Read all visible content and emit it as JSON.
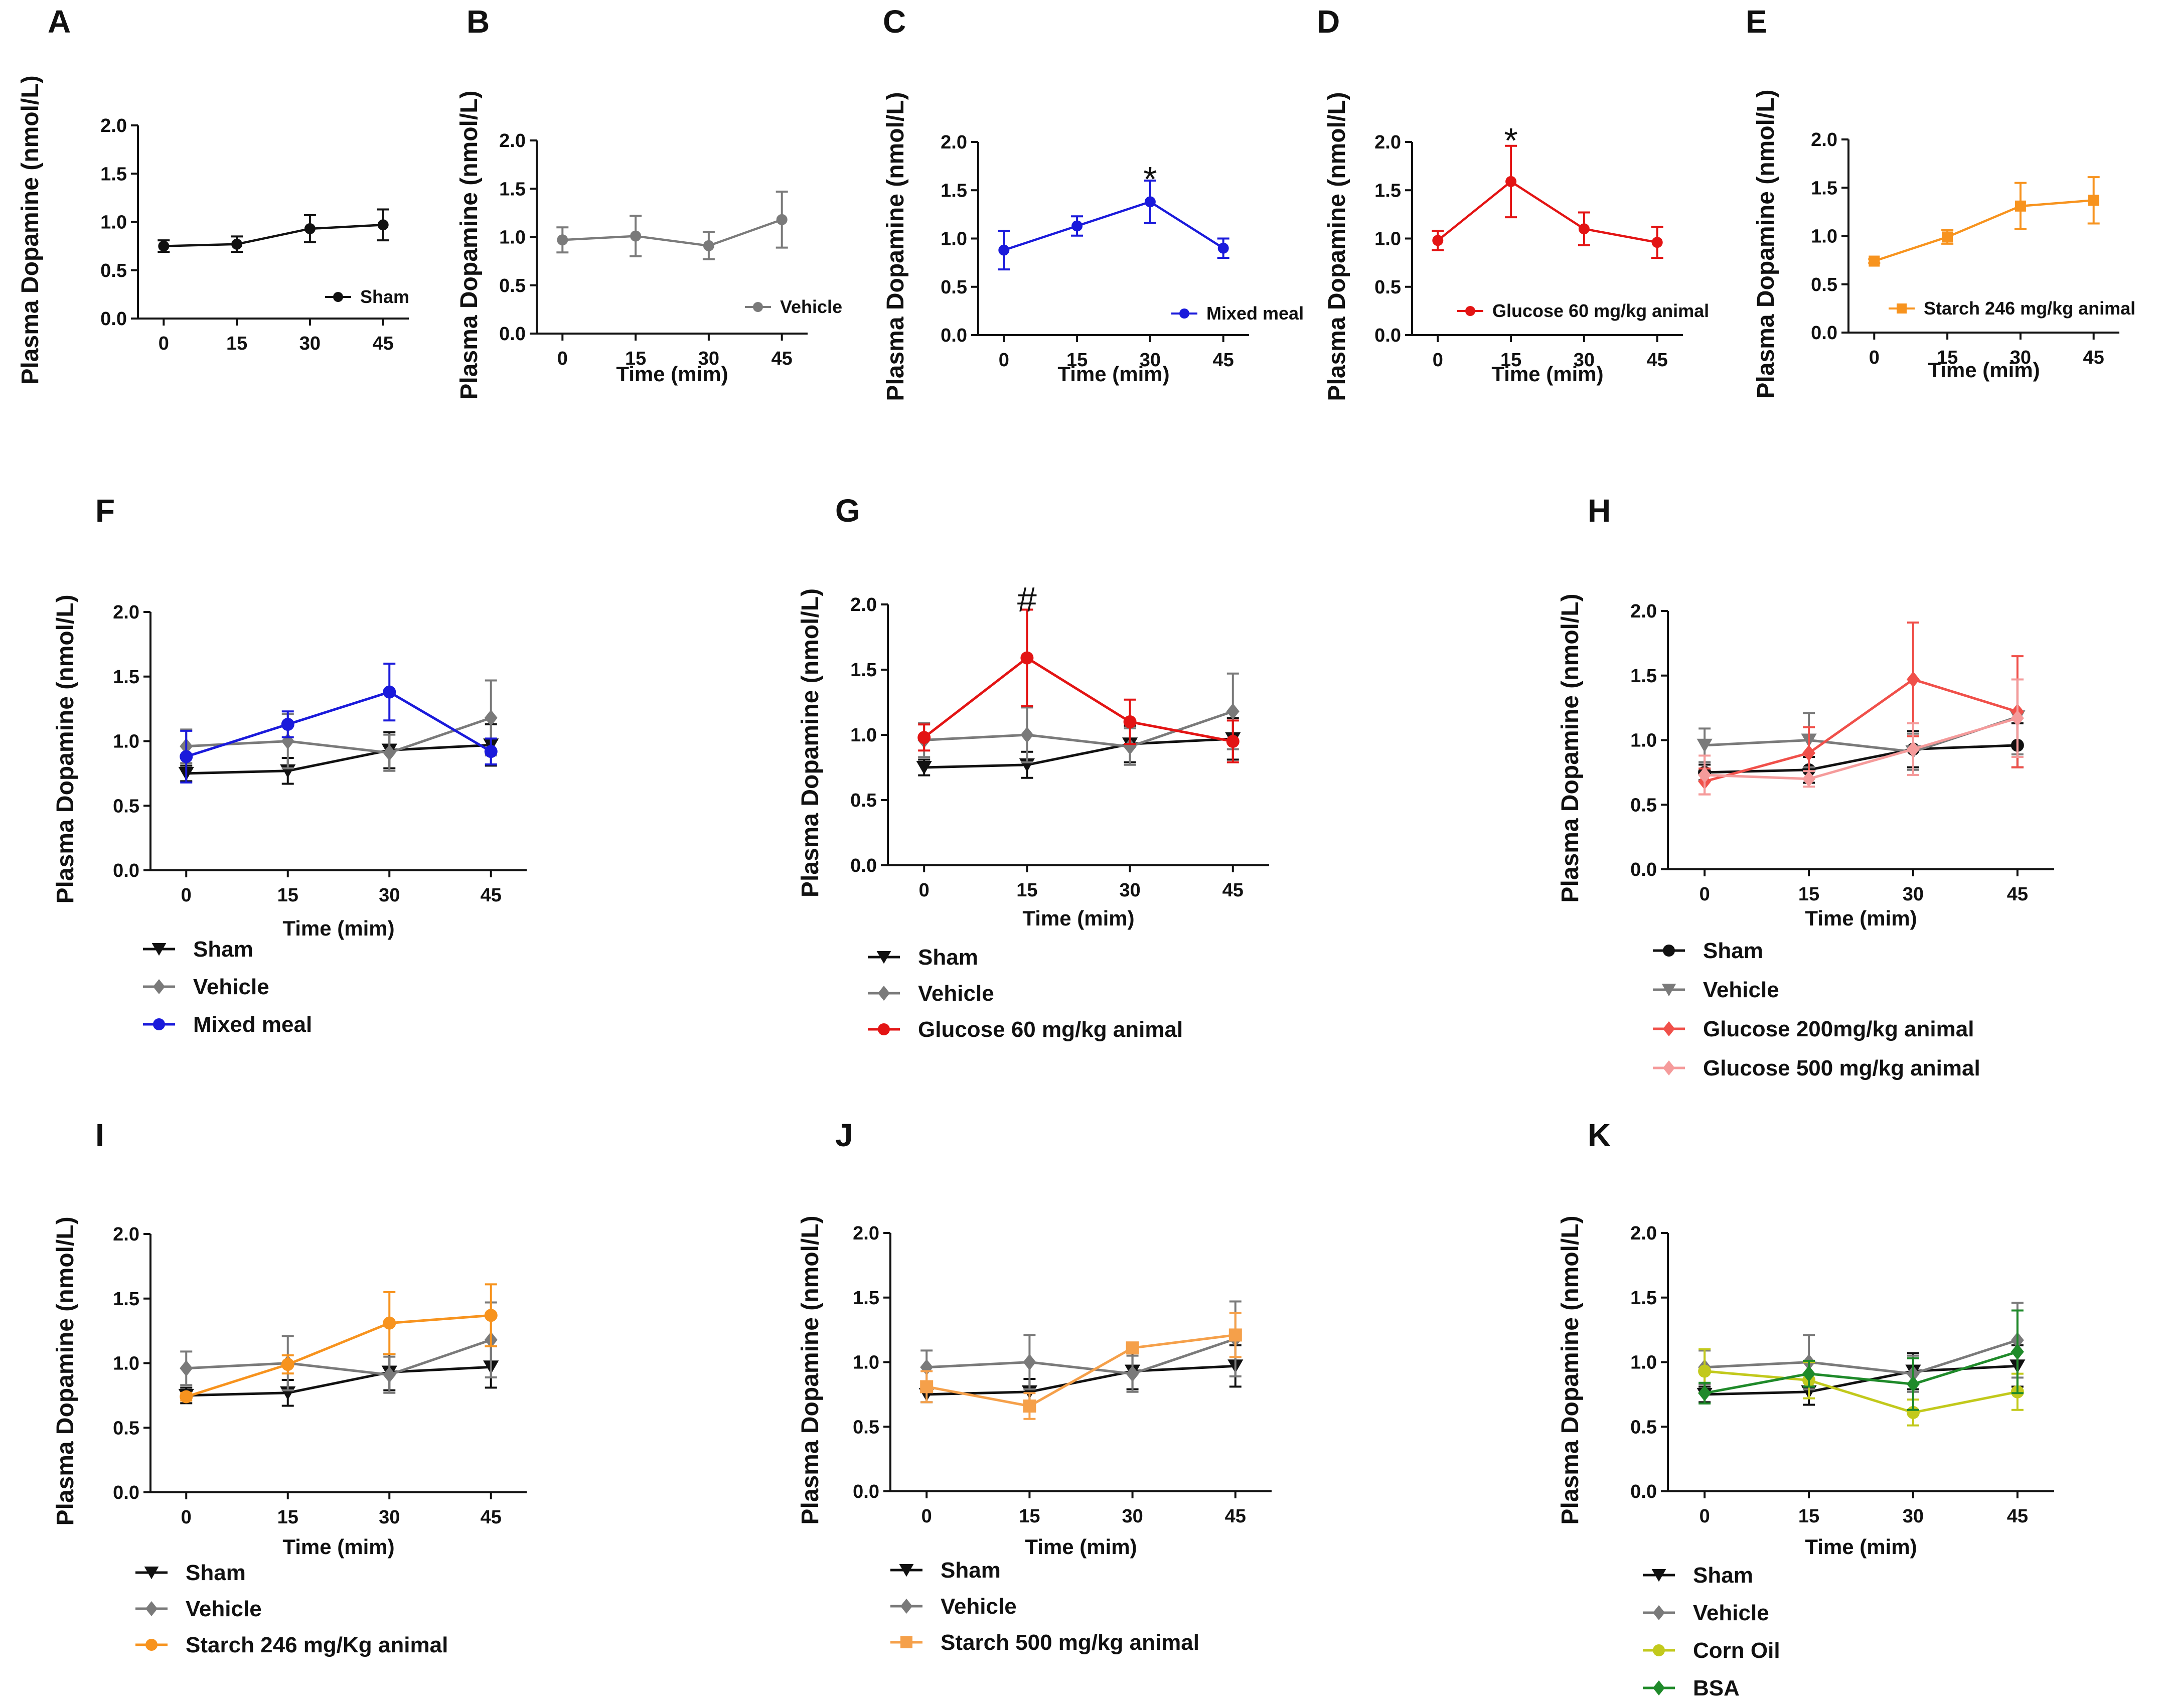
{
  "figure": {
    "colors": {
      "sham": "#111111",
      "vehicle": "#7a7a7a",
      "mixed_meal": "#1a1adb",
      "glucose60": "#e31414",
      "glucose200": "#f0504a",
      "glucose500": "#f59b9b",
      "starch246": "#f7931e",
      "starch500": "#f5a04a",
      "corn_oil": "#c2c91c",
      "bsa": "#1f8a2a"
    }
  },
  "chart_data": [
    {
      "id": "A",
      "panel_label": "A",
      "type": "line",
      "ylabel": "Plasma Dopamine (nmol/L)",
      "xlabel": "",
      "x": [
        0,
        15,
        30,
        45
      ],
      "x_tick_labels": [
        "0",
        "15",
        "30",
        "45"
      ],
      "ylim": [
        0,
        2.0
      ],
      "y_ticks": [
        0,
        0.5,
        1.0,
        1.5,
        2.0
      ],
      "y_tick_labels": [
        "0.0",
        "0.5",
        "1.0",
        "1.5",
        "2.0"
      ],
      "legend_position": "bottom-right-inside",
      "series": [
        {
          "name": "Sham",
          "color_key": "sham",
          "marker": "circle",
          "values": [
            0.75,
            0.77,
            0.93,
            0.97
          ],
          "errors": [
            0.06,
            0.08,
            0.14,
            0.16
          ]
        }
      ],
      "annotations": []
    },
    {
      "id": "B",
      "panel_label": "B",
      "type": "line",
      "ylabel": "Plasma Dopamine (nmol/L)",
      "xlabel": "Time (mim)",
      "x": [
        0,
        15,
        30,
        45
      ],
      "x_tick_labels": [
        "0",
        "15",
        "30",
        "45"
      ],
      "ylim": [
        0,
        2.0
      ],
      "y_ticks": [
        0,
        0.5,
        1.0,
        1.5,
        2.0
      ],
      "y_tick_labels": [
        "0.0",
        "0.5",
        "1.0",
        "1.5",
        "2.0"
      ],
      "legend_position": "bottom-right-inside",
      "series": [
        {
          "name": "Vehicle",
          "color_key": "vehicle",
          "marker": "circle",
          "values": [
            0.97,
            1.01,
            0.91,
            1.18
          ],
          "errors": [
            0.13,
            0.21,
            0.14,
            0.29
          ]
        }
      ],
      "annotations": []
    },
    {
      "id": "C",
      "panel_label": "C",
      "type": "line",
      "ylabel": "Plasma Dopamine (nmol/L)",
      "xlabel": "Time (mim)",
      "x": [
        0,
        15,
        30,
        45
      ],
      "x_tick_labels": [
        "0",
        "15",
        "30",
        "45"
      ],
      "ylim": [
        0,
        2.0
      ],
      "y_ticks": [
        0,
        0.5,
        1.0,
        1.5,
        2.0
      ],
      "y_tick_labels": [
        "0.0",
        "0.5",
        "1.0",
        "1.5",
        "2.0"
      ],
      "legend_position": "bottom-right-inside",
      "series": [
        {
          "name": "Mixed meal",
          "color_key": "mixed_meal",
          "marker": "circle",
          "values": [
            0.88,
            1.13,
            1.38,
            0.9
          ],
          "errors": [
            0.2,
            0.1,
            0.22,
            0.1
          ]
        }
      ],
      "annotations": [
        {
          "text": "*",
          "x": 30,
          "y": 1.7
        }
      ]
    },
    {
      "id": "D",
      "panel_label": "D",
      "type": "line",
      "ylabel": "Plasma Dopamine (nmol/L)",
      "xlabel": "Time (mim)",
      "x": [
        0,
        15,
        30,
        45
      ],
      "x_tick_labels": [
        "0",
        "15",
        "30",
        "45"
      ],
      "ylim": [
        0,
        2.0
      ],
      "y_ticks": [
        0,
        0.5,
        1.0,
        1.5,
        2.0
      ],
      "y_tick_labels": [
        "0.0",
        "0.5",
        "1.0",
        "1.5",
        "2.0"
      ],
      "legend_position": "bottom-right-inside",
      "series": [
        {
          "name": "Glucose 60 mg/kg animal",
          "color_key": "glucose60",
          "marker": "circle",
          "values": [
            0.98,
            1.59,
            1.1,
            0.96
          ],
          "errors": [
            0.1,
            0.37,
            0.17,
            0.16
          ]
        }
      ],
      "annotations": [
        {
          "text": "*",
          "x": 15,
          "y": 2.1
        }
      ]
    },
    {
      "id": "E",
      "panel_label": "E",
      "type": "line",
      "ylabel": "Plasma Dopamine (nmol/L)",
      "xlabel": "Time (mim)",
      "x": [
        0,
        15,
        30,
        45
      ],
      "x_tick_labels": [
        "0",
        "15",
        "30",
        "45"
      ],
      "ylim": [
        0,
        2.0
      ],
      "y_ticks": [
        0,
        0.5,
        1.0,
        1.5,
        2.0
      ],
      "y_tick_labels": [
        "0.0",
        "0.5",
        "1.0",
        "1.5",
        "2.0"
      ],
      "legend_position": "bottom-right-inside",
      "series": [
        {
          "name": "Starch  246 mg/kg animal",
          "color_key": "starch246",
          "marker": "square",
          "values": [
            0.74,
            0.99,
            1.31,
            1.37
          ],
          "errors": [
            0.02,
            0.07,
            0.24,
            0.24
          ]
        }
      ],
      "annotations": []
    },
    {
      "id": "F",
      "panel_label": "F",
      "type": "line",
      "ylabel": "Plasma Dopamine (nmol/L)",
      "xlabel": "Time (mim)",
      "x": [
        0,
        15,
        30,
        45
      ],
      "x_tick_labels": [
        "0",
        "15",
        "30",
        "45"
      ],
      "ylim": [
        0,
        2.0
      ],
      "y_ticks": [
        0,
        0.5,
        1.0,
        1.5,
        2.0
      ],
      "y_tick_labels": [
        "0.0",
        "0.5",
        "1.0",
        "1.5",
        "2.0"
      ],
      "legend_position": "below",
      "series": [
        {
          "name": "Sham",
          "color_key": "sham",
          "marker": "triangle-down",
          "values": [
            0.75,
            0.77,
            0.93,
            0.97
          ],
          "errors": [
            0.06,
            0.1,
            0.14,
            0.16
          ]
        },
        {
          "name": "Vehicle",
          "color_key": "vehicle",
          "marker": "diamond",
          "values": [
            0.96,
            1.0,
            0.91,
            1.18
          ],
          "errors": [
            0.13,
            0.21,
            0.14,
            0.29
          ]
        },
        {
          "name": "Mixed meal",
          "color_key": "mixed_meal",
          "marker": "circle",
          "values": [
            0.88,
            1.13,
            1.38,
            0.92
          ],
          "errors": [
            0.2,
            0.1,
            0.22,
            0.1
          ]
        }
      ],
      "annotations": []
    },
    {
      "id": "G",
      "panel_label": "G",
      "type": "line",
      "ylabel": "Plasma Dopamine (nmol/L)",
      "xlabel": "Time (mim)",
      "x": [
        0,
        15,
        30,
        45
      ],
      "x_tick_labels": [
        "0",
        "15",
        "30",
        "45"
      ],
      "ylim": [
        0,
        2.0
      ],
      "y_ticks": [
        0,
        0.5,
        1.0,
        1.5,
        2.0
      ],
      "y_tick_labels": [
        "0.0",
        "0.5",
        "1.0",
        "1.5",
        "2.0"
      ],
      "legend_position": "below",
      "series": [
        {
          "name": "Sham",
          "color_key": "sham",
          "marker": "triangle-down",
          "values": [
            0.75,
            0.77,
            0.93,
            0.97
          ],
          "errors": [
            0.06,
            0.1,
            0.14,
            0.16
          ]
        },
        {
          "name": "Vehicle",
          "color_key": "vehicle",
          "marker": "diamond",
          "values": [
            0.96,
            1.0,
            0.91,
            1.18
          ],
          "errors": [
            0.13,
            0.21,
            0.14,
            0.29
          ]
        },
        {
          "name": "Glucose 60 mg/kg animal",
          "color_key": "glucose60",
          "marker": "circle",
          "values": [
            0.98,
            1.59,
            1.1,
            0.95
          ],
          "errors": [
            0.1,
            0.37,
            0.17,
            0.16
          ]
        }
      ],
      "annotations": [
        {
          "text": "#",
          "x": 15,
          "y": 2.1
        }
      ]
    },
    {
      "id": "H",
      "panel_label": "H",
      "type": "line",
      "ylabel": "Plasma Dopamine (nmol/L)",
      "xlabel": "Time (mim)",
      "x": [
        0,
        15,
        30,
        45
      ],
      "x_tick_labels": [
        "0",
        "15",
        "30",
        "45"
      ],
      "ylim": [
        0,
        2.0
      ],
      "y_ticks": [
        0,
        0.5,
        1.0,
        1.5,
        2.0
      ],
      "y_tick_labels": [
        "0.0",
        "0.5",
        "1.0",
        "1.5",
        "2.0"
      ],
      "legend_position": "below",
      "series": [
        {
          "name": "Sham",
          "color_key": "sham",
          "marker": "circle",
          "values": [
            0.75,
            0.77,
            0.93,
            0.96
          ],
          "errors": [
            0.06,
            0.1,
            0.14,
            0.17
          ]
        },
        {
          "name": "Vehicle",
          "color_key": "vehicle",
          "marker": "triangle-down",
          "values": [
            0.96,
            1.0,
            0.91,
            1.18
          ],
          "errors": [
            0.13,
            0.21,
            0.14,
            0.29
          ]
        },
        {
          "name": "Glucose 200mg/kg animal",
          "color_key": "glucose200",
          "marker": "diamond",
          "values": [
            0.68,
            0.9,
            1.47,
            1.22
          ],
          "errors": [
            0.1,
            0.2,
            0.44,
            0.43
          ]
        },
        {
          "name": "Glucose 500 mg/kg animal",
          "color_key": "glucose500",
          "marker": "diamond",
          "values": [
            0.73,
            0.7,
            0.93,
            1.17
          ],
          "errors": [
            0.15,
            0.06,
            0.2,
            0.3
          ]
        }
      ],
      "annotations": []
    },
    {
      "id": "I",
      "panel_label": "I",
      "type": "line",
      "ylabel": "Plasma Dopamine (nmol/L)",
      "xlabel": "Time (mim)",
      "x": [
        0,
        15,
        30,
        45
      ],
      "x_tick_labels": [
        "0",
        "15",
        "30",
        "45"
      ],
      "ylim": [
        0,
        2.0
      ],
      "y_ticks": [
        0,
        0.5,
        1.0,
        1.5,
        2.0
      ],
      "y_tick_labels": [
        "0.0",
        "0.5",
        "1.0",
        "1.5",
        "2.0"
      ],
      "legend_position": "below",
      "series": [
        {
          "name": "Sham",
          "color_key": "sham",
          "marker": "triangle-down",
          "values": [
            0.75,
            0.77,
            0.93,
            0.97
          ],
          "errors": [
            0.06,
            0.1,
            0.14,
            0.16
          ]
        },
        {
          "name": "Vehicle",
          "color_key": "vehicle",
          "marker": "diamond",
          "values": [
            0.96,
            1.0,
            0.91,
            1.18
          ],
          "errors": [
            0.13,
            0.21,
            0.14,
            0.29
          ]
        },
        {
          "name": "Starch 246 mg/Kg animal",
          "color_key": "starch246",
          "marker": "circle",
          "values": [
            0.74,
            0.99,
            1.31,
            1.37
          ],
          "errors": [
            0.03,
            0.07,
            0.24,
            0.24
          ]
        }
      ],
      "annotations": []
    },
    {
      "id": "J",
      "panel_label": "J",
      "type": "line",
      "ylabel": "Plasma Dopamine (nmol/L)",
      "xlabel": "Time (mim)",
      "x": [
        0,
        15,
        30,
        45
      ],
      "x_tick_labels": [
        "0",
        "15",
        "30",
        "45"
      ],
      "ylim": [
        0,
        2.0
      ],
      "y_ticks": [
        0,
        0.5,
        1.0,
        1.5,
        2.0
      ],
      "y_tick_labels": [
        "0.0",
        "0.5",
        "1.0",
        "1.5",
        "2.0"
      ],
      "legend_position": "below",
      "series": [
        {
          "name": "Sham",
          "color_key": "sham",
          "marker": "triangle-down",
          "values": [
            0.75,
            0.77,
            0.93,
            0.97
          ],
          "errors": [
            0.06,
            0.1,
            0.14,
            0.16
          ]
        },
        {
          "name": "Vehicle",
          "color_key": "vehicle",
          "marker": "diamond",
          "values": [
            0.96,
            1.0,
            0.91,
            1.18
          ],
          "errors": [
            0.13,
            0.21,
            0.14,
            0.29
          ]
        },
        {
          "name": "Starch 500 mg/kg animal",
          "color_key": "starch500",
          "marker": "square",
          "values": [
            0.81,
            0.66,
            1.11,
            1.21
          ],
          "errors": [
            0.12,
            0.1,
            0.03,
            0.17
          ]
        }
      ],
      "annotations": []
    },
    {
      "id": "K",
      "panel_label": "K",
      "type": "line",
      "ylabel": "Plasma Dopamine (nmol/L)",
      "xlabel": "Time (mim)",
      "x": [
        0,
        15,
        30,
        45
      ],
      "x_tick_labels": [
        "0",
        "15",
        "30",
        "45"
      ],
      "ylim": [
        0,
        2.0
      ],
      "y_ticks": [
        0,
        0.5,
        1.0,
        1.5,
        2.0
      ],
      "y_tick_labels": [
        "0.0",
        "0.5",
        "1.0",
        "1.5",
        "2.0"
      ],
      "legend_position": "below",
      "series": [
        {
          "name": "Sham",
          "color_key": "sham",
          "marker": "triangle-down",
          "values": [
            0.75,
            0.77,
            0.93,
            0.97
          ],
          "errors": [
            0.06,
            0.1,
            0.14,
            0.16
          ]
        },
        {
          "name": "Vehicle",
          "color_key": "vehicle",
          "marker": "diamond",
          "values": [
            0.96,
            1.0,
            0.91,
            1.17
          ],
          "errors": [
            0.13,
            0.21,
            0.14,
            0.29
          ]
        },
        {
          "name": "Corn Oil",
          "color_key": "corn_oil",
          "marker": "circle",
          "values": [
            0.93,
            0.86,
            0.61,
            0.77
          ],
          "errors": [
            0.17,
            0.14,
            0.1,
            0.14
          ]
        },
        {
          "name": "BSA",
          "color_key": "bsa",
          "marker": "diamond",
          "values": [
            0.76,
            0.91,
            0.83,
            1.08
          ],
          "errors": [
            0.08,
            0.1,
            0.2,
            0.32
          ]
        }
      ],
      "annotations": []
    }
  ]
}
